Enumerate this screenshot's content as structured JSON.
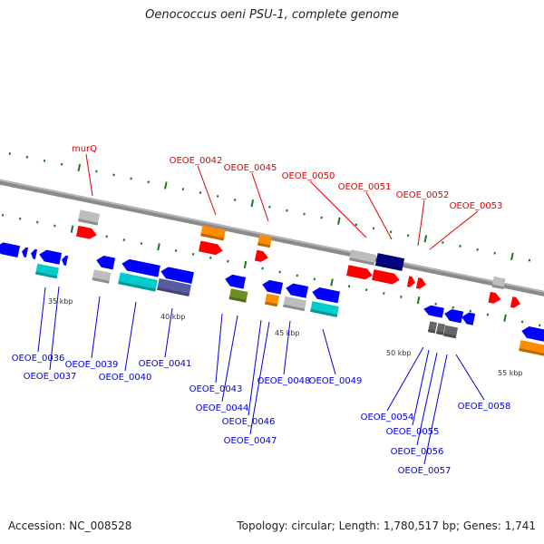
{
  "title": "Oenococcus oeni PSU-1, complete genome",
  "footer": {
    "accession": "Accession: NC_008528",
    "topology": "Topology: circular; Length: 1,780,517 bp; Genes: 1,741"
  },
  "colors": {
    "forward_label": "#e00000",
    "reverse_label": "#0000dd",
    "backbone": "#8a8a8a",
    "tick": "#1a7a1a",
    "cds_forward": "#ff0000",
    "cds_reverse": "#0000ff",
    "cog_gray": "#bdbdbd",
    "cog_orange": "#ff8c00",
    "cog_cyan": "#00cccc",
    "cog_olive": "#6b8e23",
    "cog_navy": "#000080",
    "cog_darkgray": "#666666"
  },
  "scale_labels": [
    "35 kbp",
    "40 kbp",
    "45 kbp",
    "50 kbp",
    "55 kbp"
  ],
  "forward_genes": [
    "murQ",
    "OEOE_0042",
    "OEOE_0045",
    "OEOE_0050",
    "OEOE_0051",
    "OEOE_0052",
    "OEOE_0053"
  ],
  "reverse_genes": [
    "OEOE_0036",
    "OEOE_0037",
    "OEOE_0039",
    "OEOE_0040",
    "OEOE_0041",
    "OEOE_0043",
    "OEOE_0044",
    "OEOE_0046",
    "OEOE_0047",
    "OEOE_0048",
    "OEOE_0049",
    "OEOE_0054",
    "OEOE_0055",
    "OEOE_0056",
    "OEOE_0057",
    "OEOE_0058"
  ]
}
